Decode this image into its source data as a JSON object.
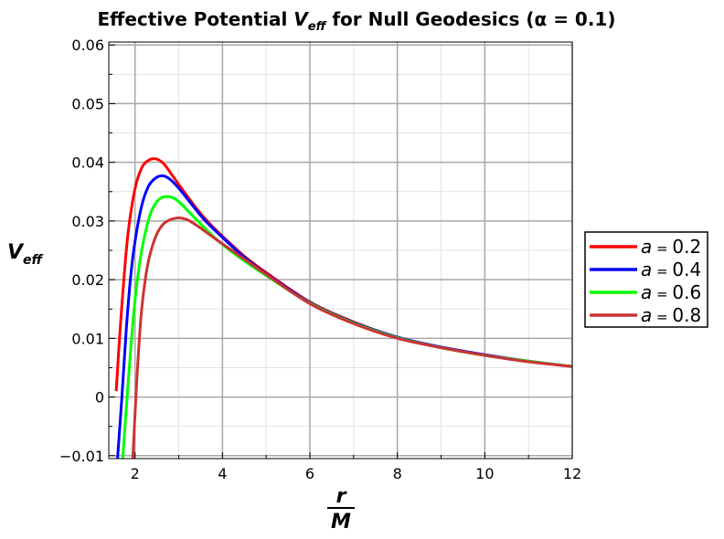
{
  "chart_data": {
    "type": "line",
    "title_prefix": "Effective Potential ",
    "title_var": "V",
    "title_var_sub": "eff",
    "title_suffix": " for Null Geodesics (α = 0.1)",
    "ylabel_var": "V",
    "ylabel_sub": "eff",
    "xlabel_num": "r",
    "xlabel_den": "M",
    "xlim": [
      1.4,
      12
    ],
    "ylim": [
      -0.0105,
      0.0605
    ],
    "xticks": [
      2,
      4,
      6,
      8,
      10,
      12
    ],
    "xtick_labels": [
      "2",
      "4",
      "6",
      "8",
      "10",
      "12"
    ],
    "yticks": [
      -0.01,
      0,
      0.01,
      0.02,
      0.03,
      0.04,
      0.05,
      0.06
    ],
    "ytick_labels": [
      "−0.01",
      "0",
      "0.01",
      "0.02",
      "0.03",
      "0.04",
      "0.05",
      "0.06"
    ],
    "grid": true,
    "legend_position": "right",
    "series": [
      {
        "name": "a = 0.2",
        "legend_var": "a",
        "legend_op": " = ",
        "legend_val": "0.2",
        "color": "#ff0000",
        "x": [
          1.57,
          1.65,
          1.75,
          1.85,
          2.0,
          2.15,
          2.3,
          2.47,
          2.65,
          2.85,
          3.1,
          3.4,
          3.7,
          4.0,
          4.5,
          5.0,
          6.0,
          7.0,
          8.0,
          9.0,
          10.0,
          11.0,
          12.0
        ],
        "y": [
          0.001,
          0.0105,
          0.0205,
          0.0285,
          0.0355,
          0.039,
          0.0403,
          0.0406,
          0.0398,
          0.0378,
          0.0352,
          0.0322,
          0.0296,
          0.0274,
          0.024,
          0.0212,
          0.0162,
          0.0128,
          0.0102,
          0.0085,
          0.0072,
          0.0061,
          0.0052
        ]
      },
      {
        "name": "a = 0.4",
        "legend_var": "a",
        "legend_op": " = ",
        "legend_val": "0.4",
        "color": "#0000ff",
        "x": [
          1.6,
          1.7,
          1.8,
          1.9,
          2.0,
          2.15,
          2.3,
          2.45,
          2.63,
          2.8,
          3.0,
          3.3,
          3.6,
          4.0,
          4.5,
          5.0,
          6.0,
          7.0,
          8.0,
          9.0,
          10.0,
          11.0,
          12.0
        ],
        "y": [
          -0.0105,
          0.0,
          0.0115,
          0.0205,
          0.0265,
          0.0325,
          0.0358,
          0.0372,
          0.0377,
          0.0371,
          0.0356,
          0.0328,
          0.0301,
          0.0272,
          0.0238,
          0.021,
          0.0161,
          0.0127,
          0.0102,
          0.0085,
          0.0072,
          0.0061,
          0.0052
        ]
      },
      {
        "name": "a = 0.6",
        "legend_var": "a",
        "legend_op": " = ",
        "legend_val": "0.6",
        "color": "#00ff00",
        "x": [
          1.72,
          1.8,
          1.9,
          2.0,
          2.1,
          2.2,
          2.35,
          2.5,
          2.65,
          2.85,
          3.0,
          3.2,
          3.5,
          3.8,
          4.1,
          4.5,
          5.0,
          6.0,
          7.0,
          8.0,
          9.0,
          10.0,
          11.0,
          12.0
        ],
        "y": [
          -0.0105,
          -0.002,
          0.008,
          0.0165,
          0.0225,
          0.0268,
          0.0312,
          0.0333,
          0.0341,
          0.034,
          0.0333,
          0.0318,
          0.0295,
          0.0273,
          0.0254,
          0.0232,
          0.0207,
          0.016,
          0.0126,
          0.0101,
          0.0084,
          0.0071,
          0.0061,
          0.0052
        ]
      },
      {
        "name": "a = 0.8",
        "legend_var": "a",
        "legend_op": " = ",
        "legend_val": "0.8",
        "color": "#cc3333",
        "x": [
          1.95,
          2.0,
          2.07,
          2.15,
          2.25,
          2.35,
          2.5,
          2.65,
          2.8,
          2.95,
          3.05,
          3.2,
          3.4,
          3.7,
          4.0,
          4.5,
          5.0,
          6.0,
          7.0,
          8.0,
          9.0,
          10.0,
          11.0,
          12.0
        ],
        "y": [
          -0.0105,
          -0.003,
          0.0065,
          0.0148,
          0.0208,
          0.0245,
          0.0278,
          0.0295,
          0.0302,
          0.0305,
          0.0305,
          0.0302,
          0.0293,
          0.0277,
          0.0261,
          0.0235,
          0.0209,
          0.0159,
          0.0125,
          0.01,
          0.0084,
          0.0071,
          0.006,
          0.0052
        ]
      }
    ]
  }
}
